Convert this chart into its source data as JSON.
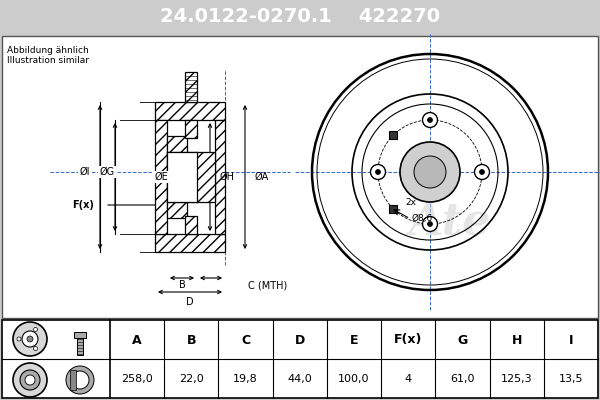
{
  "title_part_number": "24.0122-0270.1",
  "title_ref_number": "422270",
  "title_bg_color": "#0000ee",
  "title_text_color": "#ffffff",
  "subtitle_line1": "Abbildung ähnlich",
  "subtitle_line2": "Illustration similar",
  "main_bg": "#ffffff",
  "draw_bg": "#f5f5f5",
  "table_headers": [
    "A",
    "B",
    "C",
    "D",
    "E",
    "F(x)",
    "G",
    "H",
    "I"
  ],
  "table_values": [
    "258,0",
    "22,0",
    "19,8",
    "44,0",
    "100,0",
    "4",
    "61,0",
    "125,3",
    "13,5"
  ],
  "annotation_bolt": "2x",
  "annotation_hole": "Ø8,6",
  "dim_I": "ØI",
  "dim_G": "ØG",
  "dim_E": "ØE",
  "dim_H": "ØH",
  "dim_A": "ØA",
  "dim_Fx": "F(x)",
  "dim_B": "B",
  "dim_C": "C (MTH)",
  "dim_D": "D"
}
